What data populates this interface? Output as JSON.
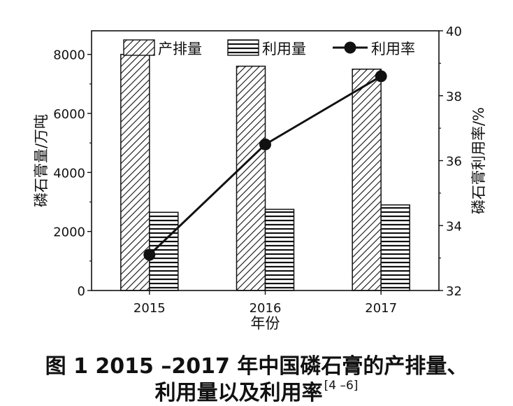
{
  "chart_data": {
    "type": "bar",
    "categories": [
      "2015",
      "2016",
      "2017"
    ],
    "series": [
      {
        "name": "产排量",
        "kind": "bar",
        "axis": "left",
        "values": [
          8000,
          7600,
          7500
        ]
      },
      {
        "name": "利用量",
        "kind": "bar",
        "axis": "left",
        "values": [
          2650,
          2750,
          2900
        ]
      },
      {
        "name": "利用率",
        "kind": "line",
        "axis": "right",
        "values": [
          33.1,
          36.5,
          38.6
        ]
      }
    ],
    "ylabel_left": "磷石膏量/万吨",
    "ylabel_right": "磷石膏利用率/%",
    "xlabel": "年份",
    "ylim_left": [
      0,
      8800
    ],
    "ylim_right": [
      32,
      40
    ],
    "yticks_left": [
      "0",
      "2000",
      "4000",
      "6000",
      "8000"
    ],
    "yticks_right": [
      "32",
      "34",
      "36",
      "38",
      "40"
    ],
    "grid": false,
    "legend": "top"
  },
  "caption": {
    "line1": "图 1   2015 –2017 年中国磷石膏的产排量、",
    "line2": "利用量以及利用率",
    "ref": "[4 –6]"
  }
}
